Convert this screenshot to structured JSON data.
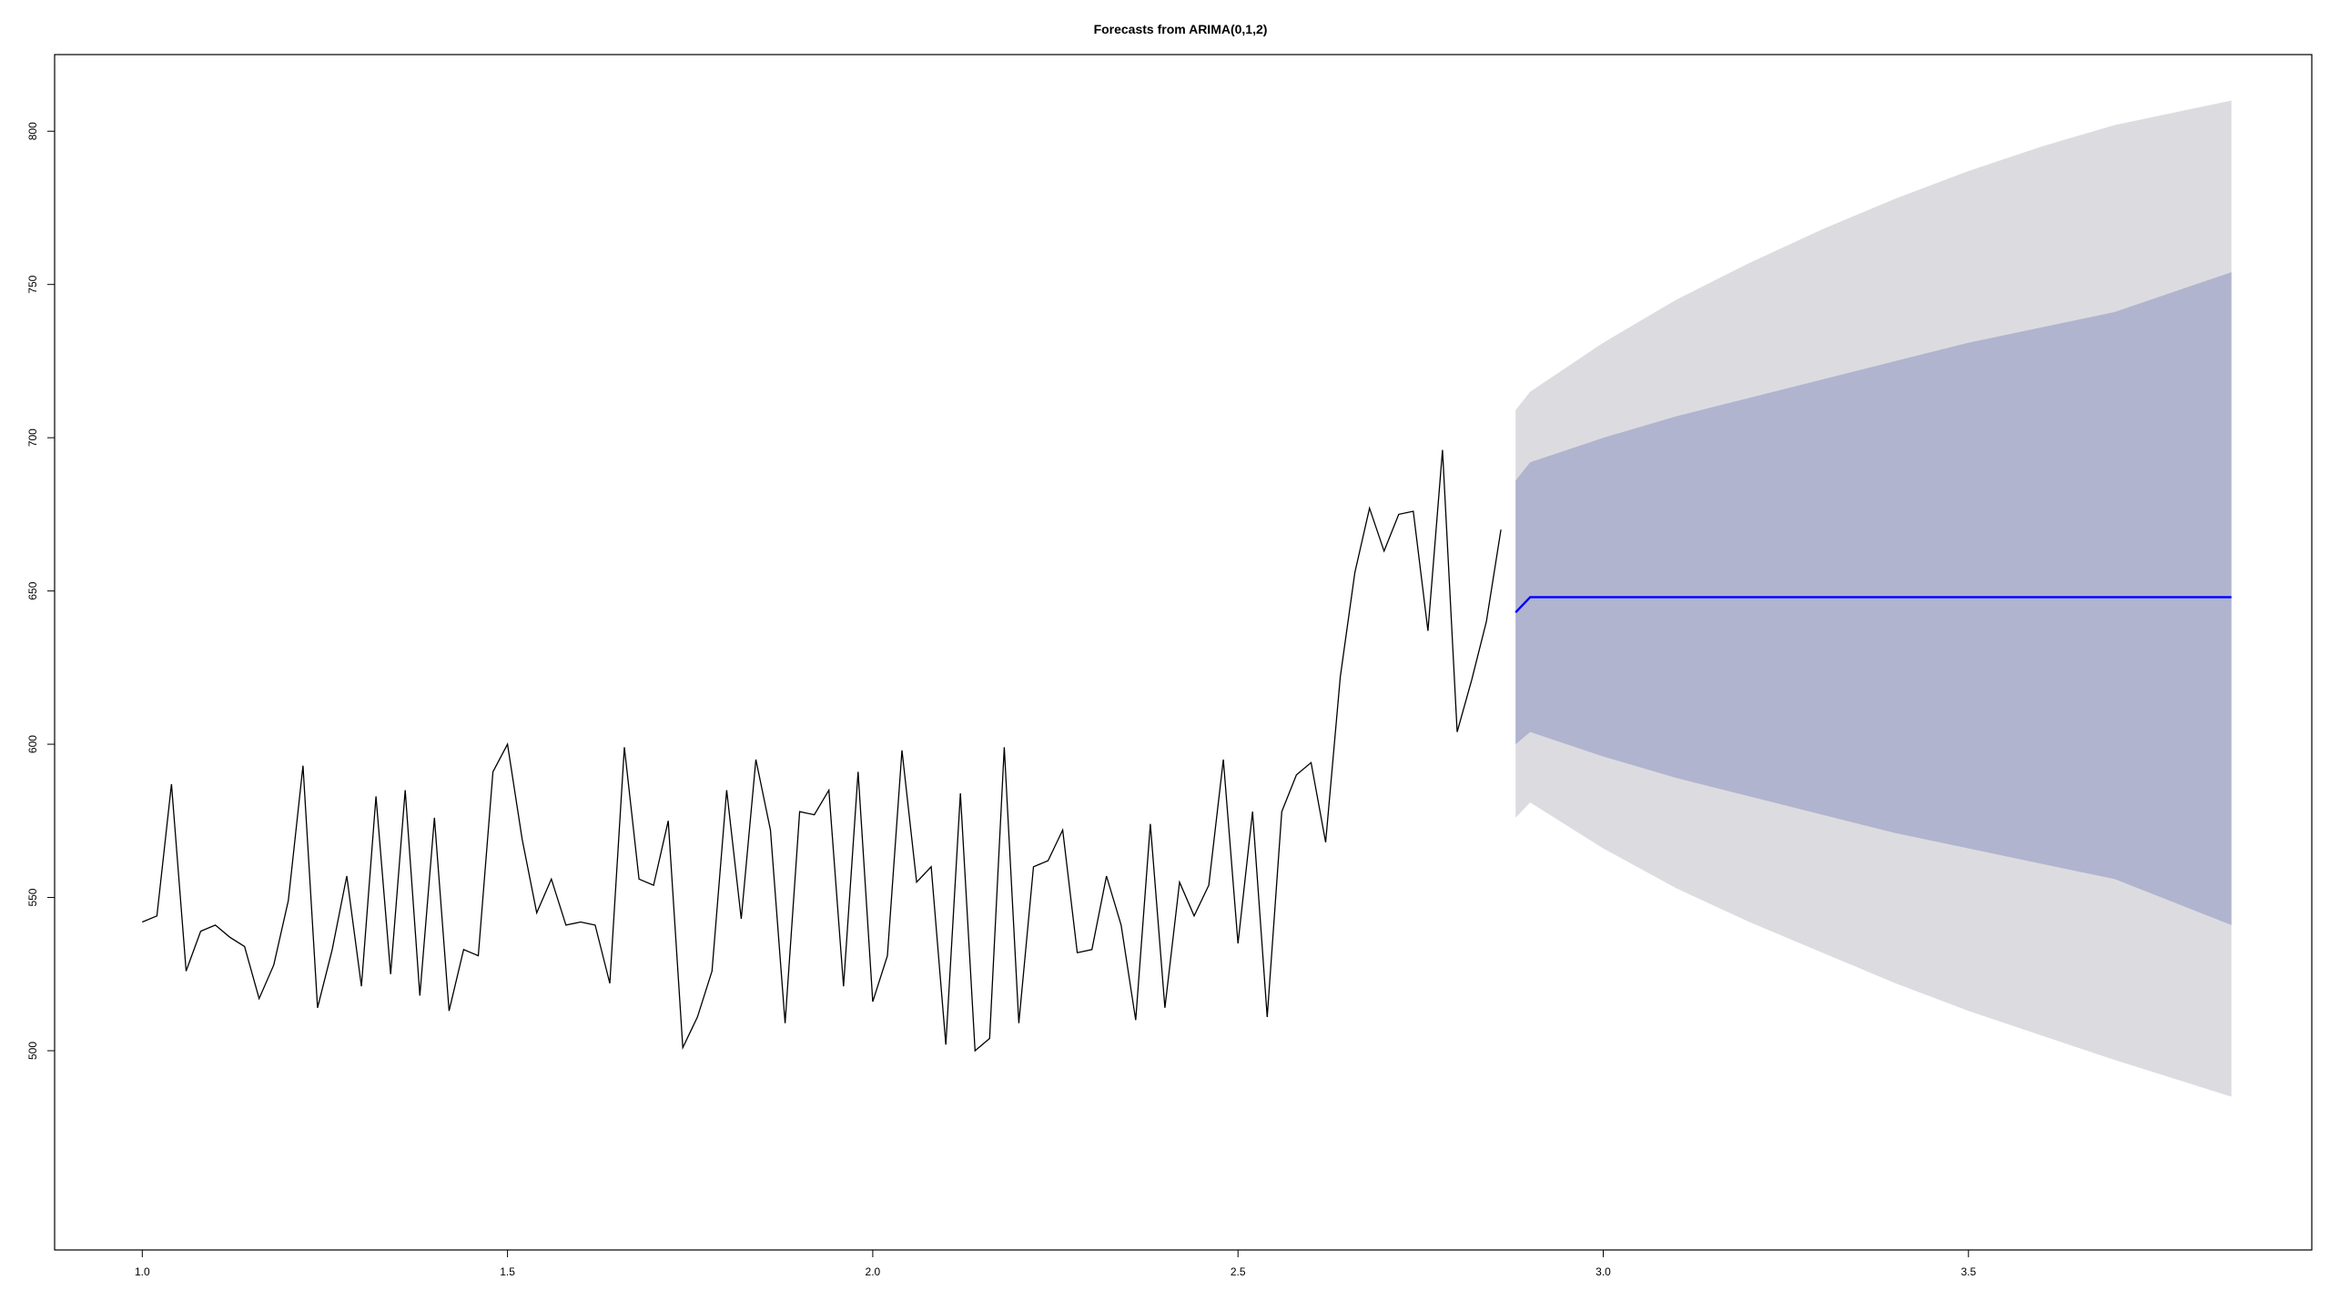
{
  "chart_data": {
    "type": "line",
    "title": "Forecasts from ARIMA(0,1,2)",
    "xlabel": "",
    "ylabel": "",
    "xlim": [
      0.88,
      3.97
    ],
    "ylim": [
      435,
      825
    ],
    "x_ticks": [
      "1.0",
      "1.5",
      "2.0",
      "2.5",
      "3.0",
      "3.5"
    ],
    "y_ticks": [
      "500",
      "550",
      "600",
      "650",
      "700",
      "750",
      "800"
    ],
    "grid": false,
    "legend": "none",
    "colors": {
      "observed": "#000000",
      "forecast": "#0000ff",
      "band80": "#b0b4cf",
      "band95": "#dcdce0"
    },
    "observed": {
      "x_start": 1.0,
      "x_step": 0.02,
      "values": [
        542,
        544,
        587,
        526,
        539,
        541,
        537,
        534,
        517,
        528,
        549,
        593,
        514,
        533,
        557,
        521,
        583,
        525,
        585,
        518,
        576,
        513,
        533,
        531,
        591,
        600,
        569,
        545,
        556,
        541,
        542,
        541,
        522,
        599,
        556,
        554,
        575,
        501,
        511,
        526,
        585,
        543,
        595,
        572,
        509,
        578,
        577,
        585,
        521,
        591,
        516,
        531,
        598,
        555,
        560,
        502,
        584,
        500,
        504,
        599,
        509,
        560,
        562,
        572,
        532,
        533,
        557,
        541,
        510,
        574,
        514,
        555,
        544,
        554,
        595,
        535,
        578,
        511,
        578,
        590,
        594,
        568,
        622,
        656,
        677,
        663,
        675,
        676,
        637,
        696,
        604,
        621,
        640,
        670
      ]
    },
    "forecast": {
      "x": [
        2.88,
        2.9,
        3.86
      ],
      "mean": [
        643,
        648,
        648
      ]
    },
    "band80": {
      "x": [
        2.88,
        2.9,
        3.0,
        3.1,
        3.2,
        3.3,
        3.4,
        3.5,
        3.6,
        3.7,
        3.86
      ],
      "lo": [
        600,
        604,
        596,
        589,
        583,
        577,
        571,
        566,
        561,
        556,
        541
      ],
      "hi": [
        686,
        692,
        700,
        707,
        713,
        719,
        725,
        731,
        736,
        741,
        754
      ]
    },
    "band95": {
      "x": [
        2.88,
        2.9,
        3.0,
        3.1,
        3.2,
        3.3,
        3.4,
        3.5,
        3.6,
        3.7,
        3.86
      ],
      "lo": [
        576,
        581,
        566,
        553,
        542,
        532,
        522,
        513,
        505,
        497,
        485
      ],
      "hi": [
        709,
        715,
        731,
        745,
        757,
        768,
        778,
        787,
        795,
        802,
        810
      ]
    }
  }
}
